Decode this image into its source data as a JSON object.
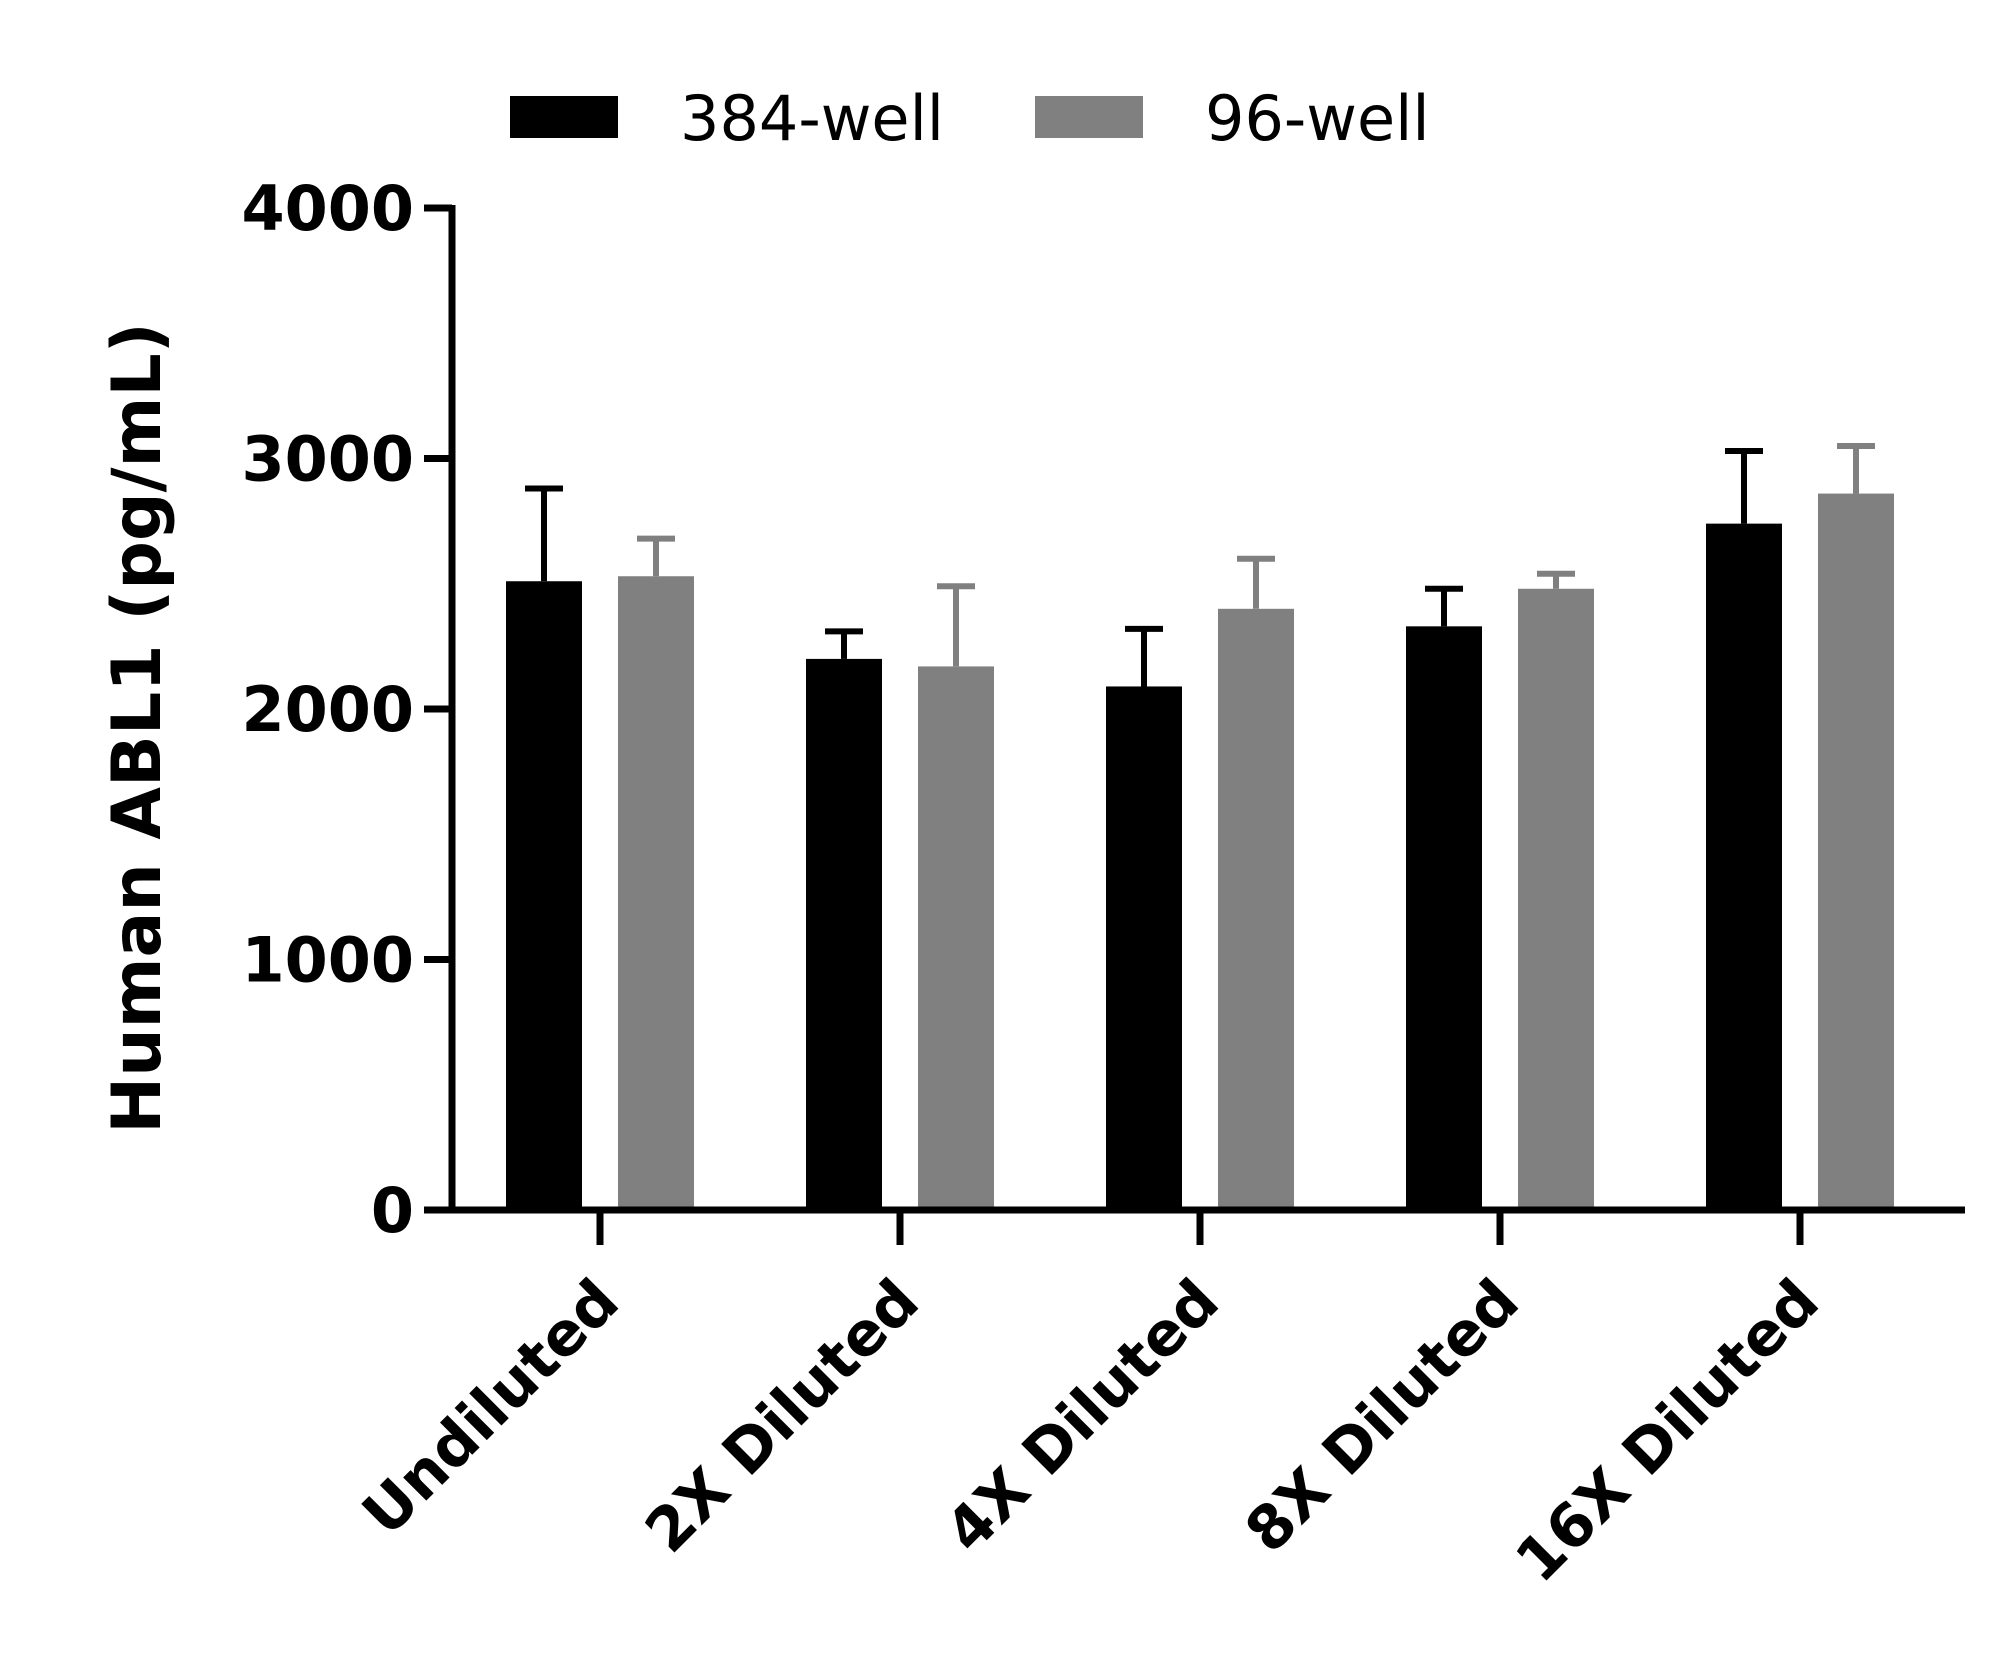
{
  "chart_data": {
    "type": "bar",
    "title": "",
    "xlabel": "",
    "ylabel": "Human ABL1 (pg/mL)",
    "ylim": [
      0,
      4000
    ],
    "yticks": [
      0,
      1000,
      2000,
      3000,
      4000
    ],
    "categories": [
      "Undiluted",
      "2X Diluted",
      "4X Diluted",
      "8X Diluted",
      "16X Diluted"
    ],
    "legend_position": "top-center",
    "series": [
      {
        "name": "384-well",
        "color": "#000000",
        "values": [
          2510,
          2200,
          2090,
          2330,
          2740
        ],
        "error": [
          370,
          110,
          230,
          150,
          290
        ]
      },
      {
        "name": "96-well",
        "color": "#808080",
        "values": [
          2530,
          2170,
          2400,
          2480,
          2860
        ],
        "error": [
          150,
          320,
          200,
          60,
          190
        ]
      }
    ]
  }
}
